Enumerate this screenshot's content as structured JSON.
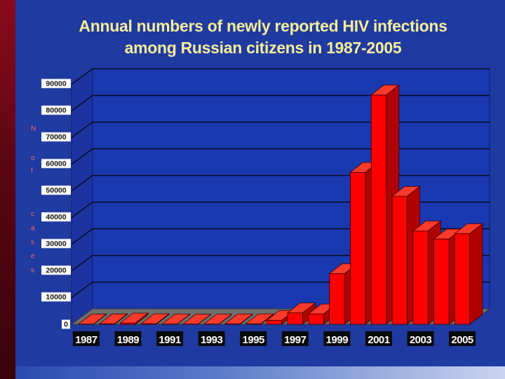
{
  "chart_data": {
    "type": "bar",
    "title_line1": "Annual numbers of  newly reported  HIV infections",
    "title_line2": "among Russian citizens  in 1987-2005",
    "ylabel_letters": [
      "N",
      "o",
      "f",
      "c",
      "a",
      "s",
      "e",
      "s"
    ],
    "ylim": [
      0,
      90000
    ],
    "yticks": [
      "0",
      "10000",
      "20000",
      "30000",
      "40000",
      "50000",
      "60000",
      "70000",
      "80000",
      "90000"
    ],
    "categories": [
      "1987",
      "1988",
      "1989",
      "1990",
      "1991",
      "1992",
      "1993",
      "1994",
      "1995",
      "1996",
      "1997",
      "1998",
      "1999",
      "2000",
      "2001",
      "2002",
      "2003",
      "2004",
      "2005"
    ],
    "shown_category_labels": [
      "1987",
      "1989",
      "1991",
      "1993",
      "1995",
      "1997",
      "1999",
      "2001",
      "2003",
      "2005"
    ],
    "values": [
      100,
      180,
      500,
      240,
      100,
      80,
      100,
      160,
      200,
      1500,
      4300,
      3900,
      19000,
      57000,
      86000,
      48000,
      35000,
      32000,
      34000
    ],
    "grid": true,
    "bar_color": "#ff0000"
  }
}
